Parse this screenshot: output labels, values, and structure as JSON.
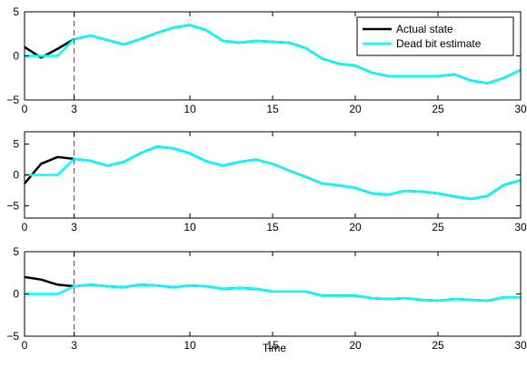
{
  "figure": {
    "xlabel": "Time",
    "colors": {
      "actual": "#000000",
      "estimate": "#00ffff",
      "marker": "#ff0000",
      "axes": "#000000",
      "background": "#ffffff"
    }
  },
  "chart_data": [
    {
      "type": "line",
      "xlim": [
        0,
        30
      ],
      "ylim": [
        -5,
        5
      ],
      "xticks": [
        0,
        3,
        10,
        15,
        20,
        25,
        30
      ],
      "yticks": [
        -5,
        0,
        5
      ],
      "vline": 3,
      "legend": {
        "placement": "top-right",
        "entries": [
          "Actual state",
          "Dead bit estimate"
        ]
      },
      "x": [
        0,
        1,
        2,
        3,
        4,
        5,
        6,
        7,
        8,
        9,
        10,
        11,
        12,
        13,
        14,
        15,
        16,
        17,
        18,
        19,
        20,
        21,
        22,
        23,
        24,
        25,
        26,
        27,
        28,
        29,
        30
      ],
      "series": [
        {
          "name": "Actual state",
          "values": [
            1.0,
            -0.2,
            0.8,
            1.9,
            2.3,
            1.8,
            1.3,
            1.9,
            2.6,
            3.2,
            3.5,
            2.9,
            1.7,
            1.5,
            1.7,
            1.6,
            1.5,
            0.9,
            -0.3,
            -0.9,
            -1.1,
            -1.9,
            -2.3,
            -2.3,
            -2.3,
            -2.3,
            -2.1,
            -2.8,
            -3.1,
            -2.5,
            -1.6
          ]
        },
        {
          "name": "Dead bit estimate",
          "values": [
            0,
            0,
            0,
            1.9,
            2.3,
            1.8,
            1.3,
            1.9,
            2.6,
            3.2,
            3.5,
            2.9,
            1.7,
            1.5,
            1.7,
            1.6,
            1.5,
            0.9,
            -0.3,
            -0.9,
            -1.1,
            -1.9,
            -2.3,
            -2.3,
            -2.3,
            -2.3,
            -2.1,
            -2.8,
            -3.1,
            -2.5,
            -1.6
          ]
        }
      ]
    },
    {
      "type": "line",
      "xlim": [
        0,
        30
      ],
      "ylim": [
        -7,
        7
      ],
      "xticks": [
        0,
        3,
        10,
        15,
        20,
        25,
        30
      ],
      "yticks": [
        -5,
        0,
        5
      ],
      "vline": 3,
      "x": [
        0,
        1,
        2,
        3,
        4,
        5,
        6,
        7,
        8,
        9,
        10,
        11,
        12,
        13,
        14,
        15,
        16,
        17,
        18,
        19,
        20,
        21,
        22,
        23,
        24,
        25,
        26,
        27,
        28,
        29,
        30
      ],
      "series": [
        {
          "values": [
            -1.4,
            1.8,
            2.9,
            2.6,
            2.3,
            1.5,
            2.1,
            3.5,
            4.6,
            4.3,
            3.5,
            2.2,
            1.5,
            2.1,
            2.5,
            1.8,
            0.7,
            -0.3,
            -1.4,
            -1.7,
            -2.1,
            -3.0,
            -3.2,
            -2.6,
            -2.7,
            -3.0,
            -3.5,
            -3.9,
            -3.4,
            -1.6,
            -0.9
          ]
        },
        {
          "values": [
            0,
            0,
            0,
            2.6,
            2.3,
            1.5,
            2.1,
            3.5,
            4.6,
            4.3,
            3.5,
            2.2,
            1.5,
            2.1,
            2.5,
            1.8,
            0.7,
            -0.3,
            -1.4,
            -1.7,
            -2.1,
            -3.0,
            -3.2,
            -2.6,
            -2.7,
            -3.0,
            -3.5,
            -3.9,
            -3.4,
            -1.6,
            -0.9
          ]
        }
      ]
    },
    {
      "type": "line",
      "xlim": [
        0,
        30
      ],
      "ylim": [
        -5,
        5
      ],
      "xticks": [
        0,
        3,
        10,
        15,
        20,
        25,
        30
      ],
      "yticks": [
        -5,
        0,
        5
      ],
      "vline": 3,
      "x": [
        0,
        1,
        2,
        3,
        4,
        5,
        6,
        7,
        8,
        9,
        10,
        11,
        12,
        13,
        14,
        15,
        16,
        17,
        18,
        19,
        20,
        21,
        22,
        23,
        24,
        25,
        26,
        27,
        28,
        29,
        30
      ],
      "series": [
        {
          "values": [
            2.0,
            1.7,
            1.1,
            0.9,
            1.1,
            0.9,
            0.8,
            1.1,
            1.0,
            0.8,
            1.0,
            0.9,
            0.6,
            0.7,
            0.6,
            0.3,
            0.3,
            0.3,
            -0.2,
            -0.2,
            -0.2,
            -0.5,
            -0.6,
            -0.5,
            -0.7,
            -0.8,
            -0.6,
            -0.7,
            -0.8,
            -0.4,
            -0.4
          ]
        },
        {
          "values": [
            0,
            0,
            0,
            0.9,
            1.1,
            0.9,
            0.8,
            1.1,
            1.0,
            0.8,
            1.0,
            0.9,
            0.6,
            0.7,
            0.6,
            0.3,
            0.3,
            0.3,
            -0.2,
            -0.2,
            -0.2,
            -0.5,
            -0.6,
            -0.5,
            -0.7,
            -0.8,
            -0.6,
            -0.7,
            -0.8,
            -0.4,
            -0.4
          ]
        }
      ]
    }
  ]
}
